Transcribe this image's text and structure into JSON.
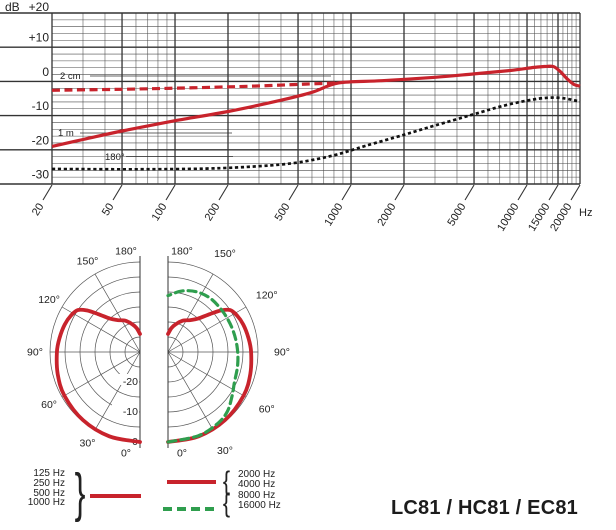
{
  "title": "LC81 / HC81 / EC81",
  "freq_response": {
    "y_unit": "dB",
    "x_unit": "Hz",
    "annotations": {
      "close": "2 cm",
      "distance": "1 m",
      "rear": "180°"
    }
  },
  "legend": {
    "low": {
      "items": [
        "125 Hz",
        "250 Hz",
        "500 Hz",
        "1000 Hz"
      ],
      "brace": "}"
    },
    "high": {
      "items": [
        "2000 Hz",
        "4000 Hz",
        "8000 Hz",
        "16000 Hz"
      ],
      "brace_top": "{",
      "brace_bottom": "{"
    }
  },
  "colors": {
    "red": "#c8232c",
    "green": "#2f9e4e",
    "grid": "#4b4b4b",
    "axis": "#333333",
    "text": "#222222"
  },
  "chart_data": [
    {
      "type": "line",
      "id": "frequency-response",
      "x_scale": "log",
      "xlim": [
        20,
        20000
      ],
      "ylim": [
        -30,
        20
      ],
      "x_unit": "Hz",
      "y_unit": "dB",
      "x_tick_values": [
        20,
        50,
        100,
        200,
        500,
        1000,
        2000,
        5000,
        10000,
        15000,
        20000
      ],
      "x_tick_labels": [
        "20",
        "50",
        "100",
        "200",
        "500",
        "1000",
        "2000",
        "5000",
        "10000",
        "15000",
        "20000"
      ],
      "y_tick_values": [
        20,
        10,
        0,
        -10,
        -20,
        -30
      ],
      "y_tick_labels": [
        "+20",
        "+10",
        "0",
        "-10",
        "-20",
        "-30"
      ],
      "grid": true,
      "series": [
        {
          "name": "2 cm",
          "style": "dashed",
          "color": "red",
          "points": [
            [
              20,
              -2.6
            ],
            [
              50,
              -2.3
            ],
            [
              100,
              -2.0
            ],
            [
              200,
              -1.6
            ],
            [
              350,
              -1.2
            ],
            [
              550,
              -0.8
            ],
            [
              850,
              -0.45
            ]
          ]
        },
        {
          "name": "1 m",
          "style": "solid",
          "color": "red",
          "points": [
            [
              20,
              -19
            ],
            [
              30,
              -17
            ],
            [
              50,
              -14.5
            ],
            [
              100,
              -11.5
            ],
            [
              200,
              -8.8
            ],
            [
              400,
              -5.5
            ],
            [
              600,
              -3.2
            ],
            [
              850,
              -0.45
            ],
            [
              1500,
              0.2
            ],
            [
              3000,
              1.2
            ],
            [
              5000,
              2.2
            ],
            [
              8000,
              3.2
            ],
            [
              11000,
              4.1
            ],
            [
              13000,
              4.4
            ],
            [
              14200,
              4.3
            ],
            [
              15500,
              2.8
            ],
            [
              17000,
              0.6
            ],
            [
              18500,
              -0.9
            ],
            [
              20000,
              -1.4
            ]
          ]
        },
        {
          "name": "180°",
          "style": "dotted",
          "color": "black",
          "points": [
            [
              20,
              -25.6
            ],
            [
              60,
              -25.7
            ],
            [
              150,
              -25.5
            ],
            [
              300,
              -24.8
            ],
            [
              500,
              -23.7
            ],
            [
              800,
              -21.6
            ],
            [
              1200,
              -18.9
            ],
            [
              2000,
              -15.6
            ],
            [
              3000,
              -12.9
            ],
            [
              5000,
              -9.6
            ],
            [
              7000,
              -7.4
            ],
            [
              10000,
              -5.6
            ],
            [
              13000,
              -4.8
            ],
            [
              16000,
              -4.9
            ],
            [
              20000,
              -5.9
            ]
          ]
        }
      ]
    },
    {
      "type": "polar",
      "id": "polar-pattern",
      "rings_db": [
        0,
        -5,
        -10,
        -15,
        -20,
        -25
      ],
      "angle_step_deg": 30,
      "angle_labels": [
        "0°",
        "30°",
        "60°",
        "90°",
        "120°",
        "150°",
        "180°"
      ],
      "radial_labels": [
        [
          "-20",
          -20
        ],
        [
          "-10",
          -10
        ],
        [
          "0",
          0
        ]
      ],
      "series": [
        {
          "name": "125–1000 Hz",
          "side": "left",
          "style": "solid",
          "color": "red",
          "points_deg_db": [
            [
              0,
              0
            ],
            [
              20,
              -0.1
            ],
            [
              40,
              -0.4
            ],
            [
              60,
              -0.9
            ],
            [
              75,
              -1.6
            ],
            [
              90,
              -2.3
            ],
            [
              100,
              -2.8
            ],
            [
              110,
              -3.3
            ],
            [
              118,
              -4.0
            ],
            [
              124,
              -5.0
            ],
            [
              128,
              -7.5
            ],
            [
              132,
              -11
            ],
            [
              138,
              -15
            ],
            [
              145,
              -17
            ],
            [
              155,
              -18.5
            ],
            [
              165,
              -20.5
            ],
            [
              172,
              -22
            ],
            [
              180,
              -24
            ]
          ]
        },
        {
          "name": "2000–4000 Hz",
          "side": "right",
          "style": "solid",
          "color": "red",
          "points_deg_db": [
            [
              0,
              0
            ],
            [
              20,
              -0.1
            ],
            [
              40,
              -0.4
            ],
            [
              60,
              -0.9
            ],
            [
              75,
              -1.6
            ],
            [
              90,
              -2.3
            ],
            [
              100,
              -2.8
            ],
            [
              110,
              -3.3
            ],
            [
              118,
              -4.0
            ],
            [
              124,
              -5.0
            ],
            [
              128,
              -7.5
            ],
            [
              132,
              -11
            ],
            [
              138,
              -15
            ],
            [
              145,
              -17
            ],
            [
              155,
              -18.5
            ],
            [
              165,
              -20.5
            ],
            [
              172,
              -22
            ],
            [
              180,
              -24
            ]
          ]
        },
        {
          "name": "8000–16000 Hz",
          "side": "right",
          "style": "dashed",
          "color": "green",
          "points_deg_db": [
            [
              0,
              0
            ],
            [
              20,
              -0.3
            ],
            [
              35,
              -1.0
            ],
            [
              45,
              -2.0
            ],
            [
              55,
              -4.0
            ],
            [
              65,
              -5.6
            ],
            [
              80,
              -6.4
            ],
            [
              95,
              -6.9
            ],
            [
              110,
              -7.2
            ],
            [
              125,
              -7.3
            ],
            [
              140,
              -7.2
            ],
            [
              152,
              -7.6
            ],
            [
              162,
              -8.5
            ],
            [
              170,
              -9.6
            ],
            [
              180,
              -11.2
            ]
          ]
        }
      ]
    }
  ]
}
